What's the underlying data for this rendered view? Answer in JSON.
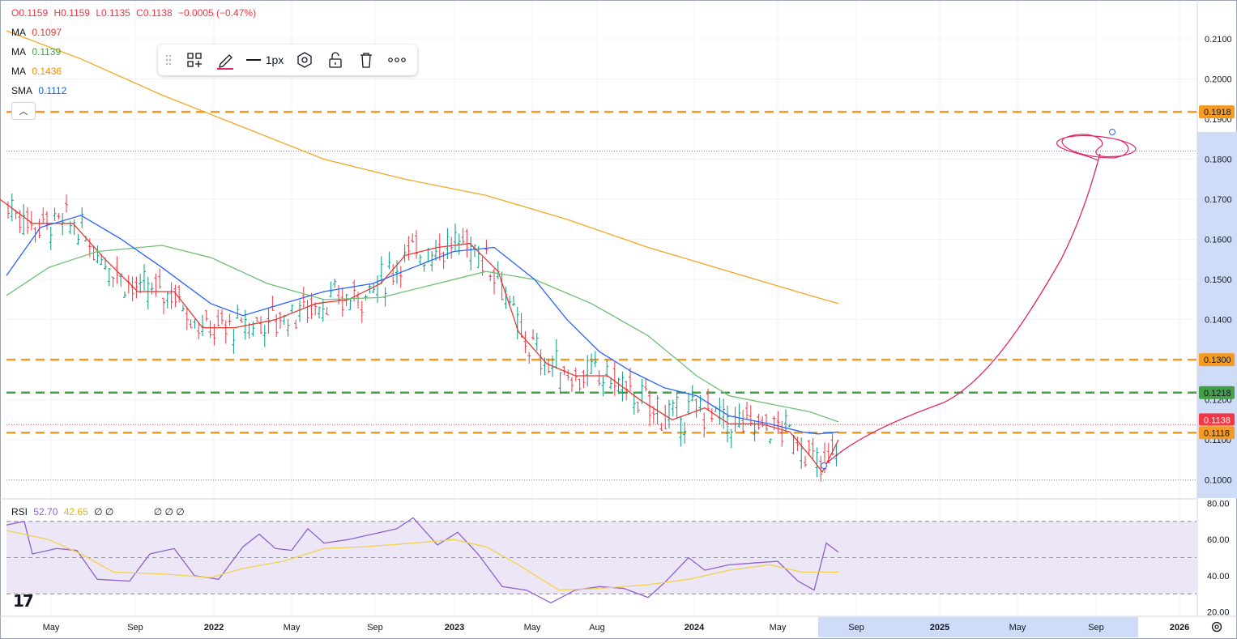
{
  "ohlc": {
    "o": "O0.1159",
    "h": "H0.1159",
    "l": "L0.1135",
    "c": "C0.1138",
    "chg": "−0.0005 (−0.47%)"
  },
  "indicators": [
    {
      "name": "MA",
      "value": "0.1097",
      "color": "#e53935"
    },
    {
      "name": "MA",
      "value": "0.1139",
      "color": "#43a047"
    },
    {
      "name": "MA",
      "value": "0.1436",
      "color": "#fb8c00"
    },
    {
      "name": "SMA",
      "value": "0.1112",
      "color": "#1e63d6"
    }
  ],
  "toolbar": {
    "width_label": "1px"
  },
  "rsi": {
    "label": "RSI",
    "value1": "52.70",
    "value2": "42.65",
    "extra1": "∅ ∅",
    "extra2": "∅ ∅ ∅"
  },
  "colors": {
    "up": "#089981",
    "down": "#f23645",
    "ma_red": "#e53935",
    "ma_green": "#6fbf73",
    "ma_orange": "#f5a623",
    "sma_blue": "#2962ff",
    "hl_orange": "#f59a23",
    "hl_green": "#43a047",
    "drawing": "#e0266b",
    "rsi": "#8e5fcf",
    "rsi_ma": "#f2d24b"
  },
  "chart_data": {
    "type": "line",
    "price_axis": {
      "ylim": [
        0.0955,
        0.2195
      ],
      "ticks": [
        "0.2100",
        "0.2000",
        "0.1900",
        "0.1800",
        "0.1700",
        "0.1600",
        "0.1500",
        "0.1400",
        "0.1300",
        "0.1200",
        "0.1100",
        "0.1000"
      ]
    },
    "rsi_axis": {
      "ylim": [
        18,
        82
      ],
      "ticks": [
        "80.00",
        "60.00",
        "40.00",
        "20.00"
      ]
    },
    "time_axis": {
      "ticks": [
        "May",
        "Sep",
        "2022",
        "May",
        "Sep",
        "2023",
        "May",
        "Aug",
        "2024",
        "May",
        "Sep",
        "2025",
        "May",
        "Sep",
        "2026"
      ]
    },
    "horizontal_levels": [
      {
        "value": 0.1918,
        "label": "0.1918",
        "color": "#f59a23"
      },
      {
        "value": 0.13,
        "label": "0.1300",
        "color": "#f59a23"
      },
      {
        "value": 0.1218,
        "label": "0.1218",
        "color": "#43a047"
      },
      {
        "value": 0.1118,
        "label": "0.1118",
        "color": "#f59a23"
      }
    ],
    "last_price": {
      "value": 0.1138,
      "label": "0.1138"
    },
    "series": [
      {
        "name": "MA",
        "values": [
          [
            0,
            0.17
          ],
          [
            40,
            0.164
          ],
          [
            90,
            0.164
          ],
          [
            130,
            0.155
          ],
          [
            170,
            0.147
          ],
          [
            215,
            0.147
          ],
          [
            250,
            0.138
          ],
          [
            290,
            0.138
          ],
          [
            340,
            0.14
          ],
          [
            390,
            0.144
          ],
          [
            430,
            0.145
          ],
          [
            470,
            0.149
          ],
          [
            500,
            0.156
          ],
          [
            540,
            0.158
          ],
          [
            580,
            0.159
          ],
          [
            615,
            0.152
          ],
          [
            640,
            0.137
          ],
          [
            675,
            0.129
          ],
          [
            710,
            0.126
          ],
          [
            750,
            0.126
          ],
          [
            790,
            0.12
          ],
          [
            830,
            0.115
          ],
          [
            870,
            0.118
          ],
          [
            900,
            0.114
          ],
          [
            940,
            0.114
          ],
          [
            975,
            0.112
          ],
          [
            1000,
            0.106
          ],
          [
            1015,
            0.102
          ],
          [
            1035,
            0.11
          ]
        ]
      },
      {
        "name": "MA",
        "values": [
          [
            8,
            0.146
          ],
          [
            60,
            0.153
          ],
          [
            120,
            0.157
          ],
          [
            200,
            0.1585
          ],
          [
            260,
            0.1555
          ],
          [
            330,
            0.149
          ],
          [
            400,
            0.145
          ],
          [
            470,
            0.1455
          ],
          [
            540,
            0.149
          ],
          [
            600,
            0.152
          ],
          [
            660,
            0.15
          ],
          [
            730,
            0.144
          ],
          [
            800,
            0.136
          ],
          [
            860,
            0.126
          ],
          [
            900,
            0.121
          ],
          [
            950,
            0.119
          ],
          [
            1000,
            0.117
          ],
          [
            1035,
            0.1145
          ]
        ]
      },
      {
        "name": "MA",
        "values": [
          [
            8,
            0.212
          ],
          [
            100,
            0.205
          ],
          [
            200,
            0.196
          ],
          [
            300,
            0.188
          ],
          [
            400,
            0.18
          ],
          [
            500,
            0.175
          ],
          [
            600,
            0.171
          ],
          [
            700,
            0.165
          ],
          [
            800,
            0.158
          ],
          [
            900,
            0.152
          ],
          [
            1000,
            0.146
          ],
          [
            1035,
            0.144
          ]
        ]
      },
      {
        "name": "SMA",
        "values": [
          [
            8,
            0.151
          ],
          [
            50,
            0.163
          ],
          [
            100,
            0.166
          ],
          [
            150,
            0.16
          ],
          [
            200,
            0.153
          ],
          [
            260,
            0.144
          ],
          [
            300,
            0.141
          ],
          [
            350,
            0.144
          ],
          [
            400,
            0.147
          ],
          [
            460,
            0.149
          ],
          [
            510,
            0.153
          ],
          [
            560,
            0.157
          ],
          [
            610,
            0.158
          ],
          [
            660,
            0.15
          ],
          [
            700,
            0.14
          ],
          [
            740,
            0.132
          ],
          [
            780,
            0.127
          ],
          [
            820,
            0.123
          ],
          [
            860,
            0.121
          ],
          [
            900,
            0.116
          ],
          [
            950,
            0.114
          ],
          [
            990,
            0.112
          ],
          [
            1010,
            0.1115
          ],
          [
            1035,
            0.112
          ]
        ]
      },
      {
        "name": "RSI",
        "values": [
          [
            8,
            68
          ],
          [
            30,
            70
          ],
          [
            40,
            52
          ],
          [
            70,
            55
          ],
          [
            95,
            54
          ],
          [
            120,
            38
          ],
          [
            160,
            37
          ],
          [
            185,
            52
          ],
          [
            215,
            55
          ],
          [
            240,
            40
          ],
          [
            270,
            38
          ],
          [
            300,
            56
          ],
          [
            320,
            63
          ],
          [
            340,
            55
          ],
          [
            360,
            54
          ],
          [
            380,
            66
          ],
          [
            400,
            58
          ],
          [
            430,
            60
          ],
          [
            460,
            63
          ],
          [
            490,
            66
          ],
          [
            510,
            72
          ],
          [
            540,
            57
          ],
          [
            565,
            64
          ],
          [
            590,
            52
          ],
          [
            620,
            34
          ],
          [
            650,
            32
          ],
          [
            680,
            25
          ],
          [
            710,
            32
          ],
          [
            740,
            34
          ],
          [
            770,
            33
          ],
          [
            800,
            28
          ],
          [
            820,
            36
          ],
          [
            850,
            50
          ],
          [
            870,
            43
          ],
          [
            900,
            46
          ],
          [
            930,
            47
          ],
          [
            960,
            48
          ],
          [
            985,
            37
          ],
          [
            1005,
            32
          ],
          [
            1020,
            58
          ],
          [
            1035,
            53
          ]
        ]
      },
      {
        "name": "RSI-MA",
        "values": [
          [
            8,
            65
          ],
          [
            60,
            60
          ],
          [
            100,
            52
          ],
          [
            140,
            42
          ],
          [
            200,
            41
          ],
          [
            260,
            39
          ],
          [
            300,
            44
          ],
          [
            350,
            48
          ],
          [
            400,
            55
          ],
          [
            450,
            56
          ],
          [
            510,
            58
          ],
          [
            560,
            60
          ],
          [
            600,
            56
          ],
          [
            640,
            46
          ],
          [
            690,
            32
          ],
          [
            740,
            33
          ],
          [
            800,
            35
          ],
          [
            850,
            38
          ],
          [
            900,
            43
          ],
          [
            950,
            46
          ],
          [
            990,
            42
          ],
          [
            1035,
            42
          ]
        ]
      }
    ]
  }
}
